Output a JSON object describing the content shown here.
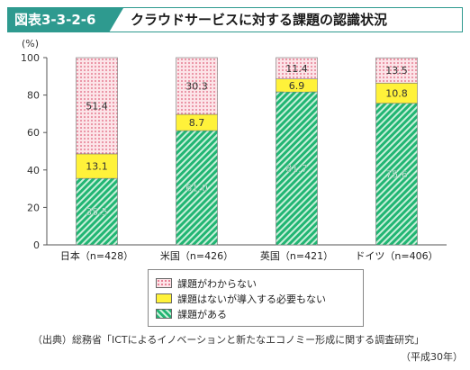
{
  "title": {
    "figure_number": "図表3-3-2-6",
    "text": "クラウドサービスに対する課題の認識状況"
  },
  "chart_data": {
    "type": "bar",
    "stacked": true,
    "unit_label": "(%)",
    "ylim": [
      0,
      100
    ],
    "yticks": [
      "0",
      "20",
      "40",
      "60",
      "80",
      "100"
    ],
    "grid": false,
    "categories": [
      "日本（n=428）",
      "米国（n=426）",
      "英国（n=421）",
      "ドイツ（n=406）"
    ],
    "series": [
      {
        "name": "課題がある",
        "values": [
          35.5,
          61.0,
          81.7,
          75.6
        ],
        "labels": [
          "35.5",
          "61.0",
          "81.7",
          "75.6"
        ],
        "color": "#21b573",
        "pattern": "hatch"
      },
      {
        "name": "課題はないが導入する必要もない",
        "values": [
          13.1,
          8.7,
          6.9,
          10.8
        ],
        "labels": [
          "13.1",
          "8.7",
          "6.9",
          "10.8"
        ],
        "color": "#fff23a",
        "pattern": "solid"
      },
      {
        "name": "課題がわからない",
        "values": [
          51.4,
          30.3,
          11.4,
          13.5
        ],
        "labels": [
          "51.4",
          "30.3",
          "11.4",
          "13.5"
        ],
        "color": "#f4a9b4",
        "pattern": "dots"
      }
    ],
    "legend_position": "bottom"
  },
  "source": {
    "text": "（出典）総務省「ICTによるイノベーションと新たなエコノミー形成に関する調査研究」",
    "year": "（平成30年）"
  }
}
